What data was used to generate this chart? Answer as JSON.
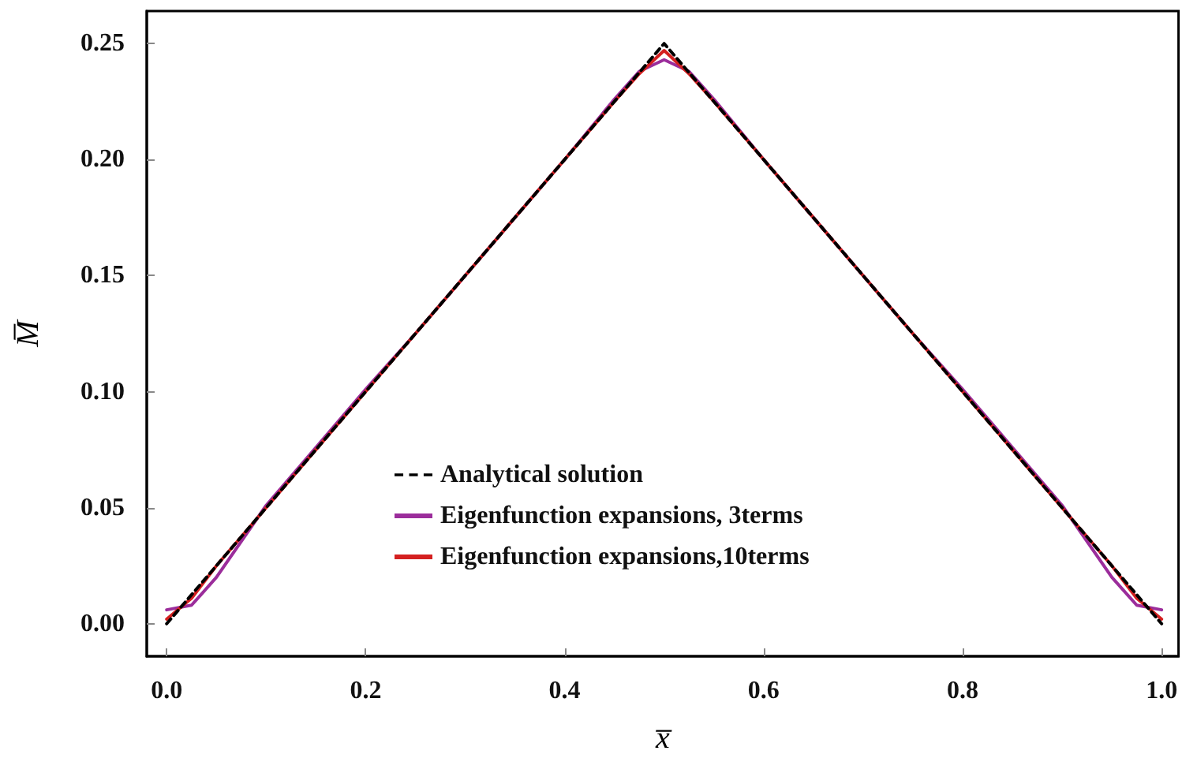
{
  "chart_data": {
    "type": "line",
    "xlabel": "x̅",
    "ylabel": "M̅",
    "xlim": [
      -0.02,
      1.017
    ],
    "ylim": [
      -0.014,
      0.264
    ],
    "xticks": [
      {
        "value": 0,
        "label": "0.0"
      },
      0.2,
      0.4,
      0.6,
      0.8,
      {
        "value": 1,
        "label": "1.0"
      }
    ],
    "yticks": [
      {
        "value": 0,
        "label": "0.00"
      },
      0.05,
      {
        "value": 0.1,
        "label": "0.10"
      },
      0.15,
      {
        "value": 0.2,
        "label": "0.20"
      },
      0.25
    ],
    "legend": "bottom",
    "grid": false,
    "marker": "none",
    "series": [
      {
        "name": "Analytical solution",
        "color": "#000000",
        "line_style": "dashed",
        "x": [
          0,
          0.5,
          1
        ],
        "values": [
          0,
          0.25,
          0
        ]
      },
      {
        "name": "Eigenfunction expansions, 3terms",
        "color": "#9b2d9b",
        "line_style": "solid",
        "x": [
          0,
          0.025,
          0.05,
          0.1,
          0.15,
          0.2,
          0.25,
          0.3,
          0.35,
          0.4,
          0.45,
          0.475,
          0.5,
          0.525,
          0.55,
          0.6,
          0.65,
          0.7,
          0.75,
          0.8,
          0.85,
          0.9,
          0.95,
          0.975,
          1
        ],
        "values": [
          0.006,
          0.008,
          0.02,
          0.051,
          0.076,
          0.101,
          0.125,
          0.15,
          0.175,
          0.2,
          0.226,
          0.238,
          0.243,
          0.238,
          0.226,
          0.2,
          0.175,
          0.15,
          0.125,
          0.101,
          0.076,
          0.051,
          0.02,
          0.008,
          0.006
        ]
      },
      {
        "name": "Eigenfunction expansions,10terms",
        "color": "#d42020",
        "line_style": "solid",
        "x": [
          0,
          0.025,
          0.05,
          0.1,
          0.15,
          0.2,
          0.25,
          0.3,
          0.35,
          0.4,
          0.45,
          0.475,
          0.5,
          0.525,
          0.55,
          0.6,
          0.65,
          0.7,
          0.75,
          0.8,
          0.85,
          0.9,
          0.95,
          0.975,
          1
        ],
        "values": [
          0.002,
          0.011,
          0.025,
          0.05,
          0.075,
          0.1,
          0.125,
          0.15,
          0.175,
          0.2,
          0.225,
          0.237,
          0.247,
          0.237,
          0.225,
          0.2,
          0.175,
          0.15,
          0.125,
          0.1,
          0.075,
          0.05,
          0.025,
          0.011,
          0.002
        ]
      }
    ]
  }
}
